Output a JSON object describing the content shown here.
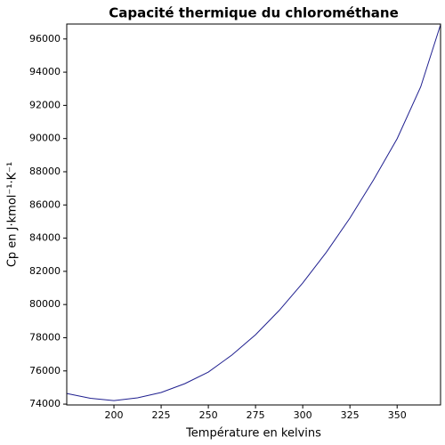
{
  "chart_data": {
    "type": "line",
    "title": "Capacité thermique du chlorométhane",
    "xlabel": "Température en kelvins",
    "ylabel": "Cp en J·kmol⁻¹·K⁻¹",
    "x": [
      175,
      187.5,
      200,
      212.5,
      225,
      237.5,
      250,
      262.5,
      275,
      287.5,
      300,
      312.5,
      325,
      337.5,
      350,
      362.5,
      373
    ],
    "series": [
      {
        "color": "#1f1f8f",
        "values": [
          74640,
          74350,
          74210,
          74380,
          74700,
          75230,
          75930,
          76960,
          78180,
          79640,
          81300,
          83150,
          85210,
          87510,
          89990,
          93120,
          96860
        ]
      }
    ],
    "xlim": [
      175,
      373
    ],
    "ylim": [
      73950,
      96900
    ],
    "xticks": [
      200,
      225,
      250,
      275,
      300,
      325,
      350
    ],
    "yticks": [
      74000,
      76000,
      78000,
      80000,
      82000,
      84000,
      86000,
      88000,
      90000,
      92000,
      94000,
      96000
    ],
    "grid": false
  }
}
